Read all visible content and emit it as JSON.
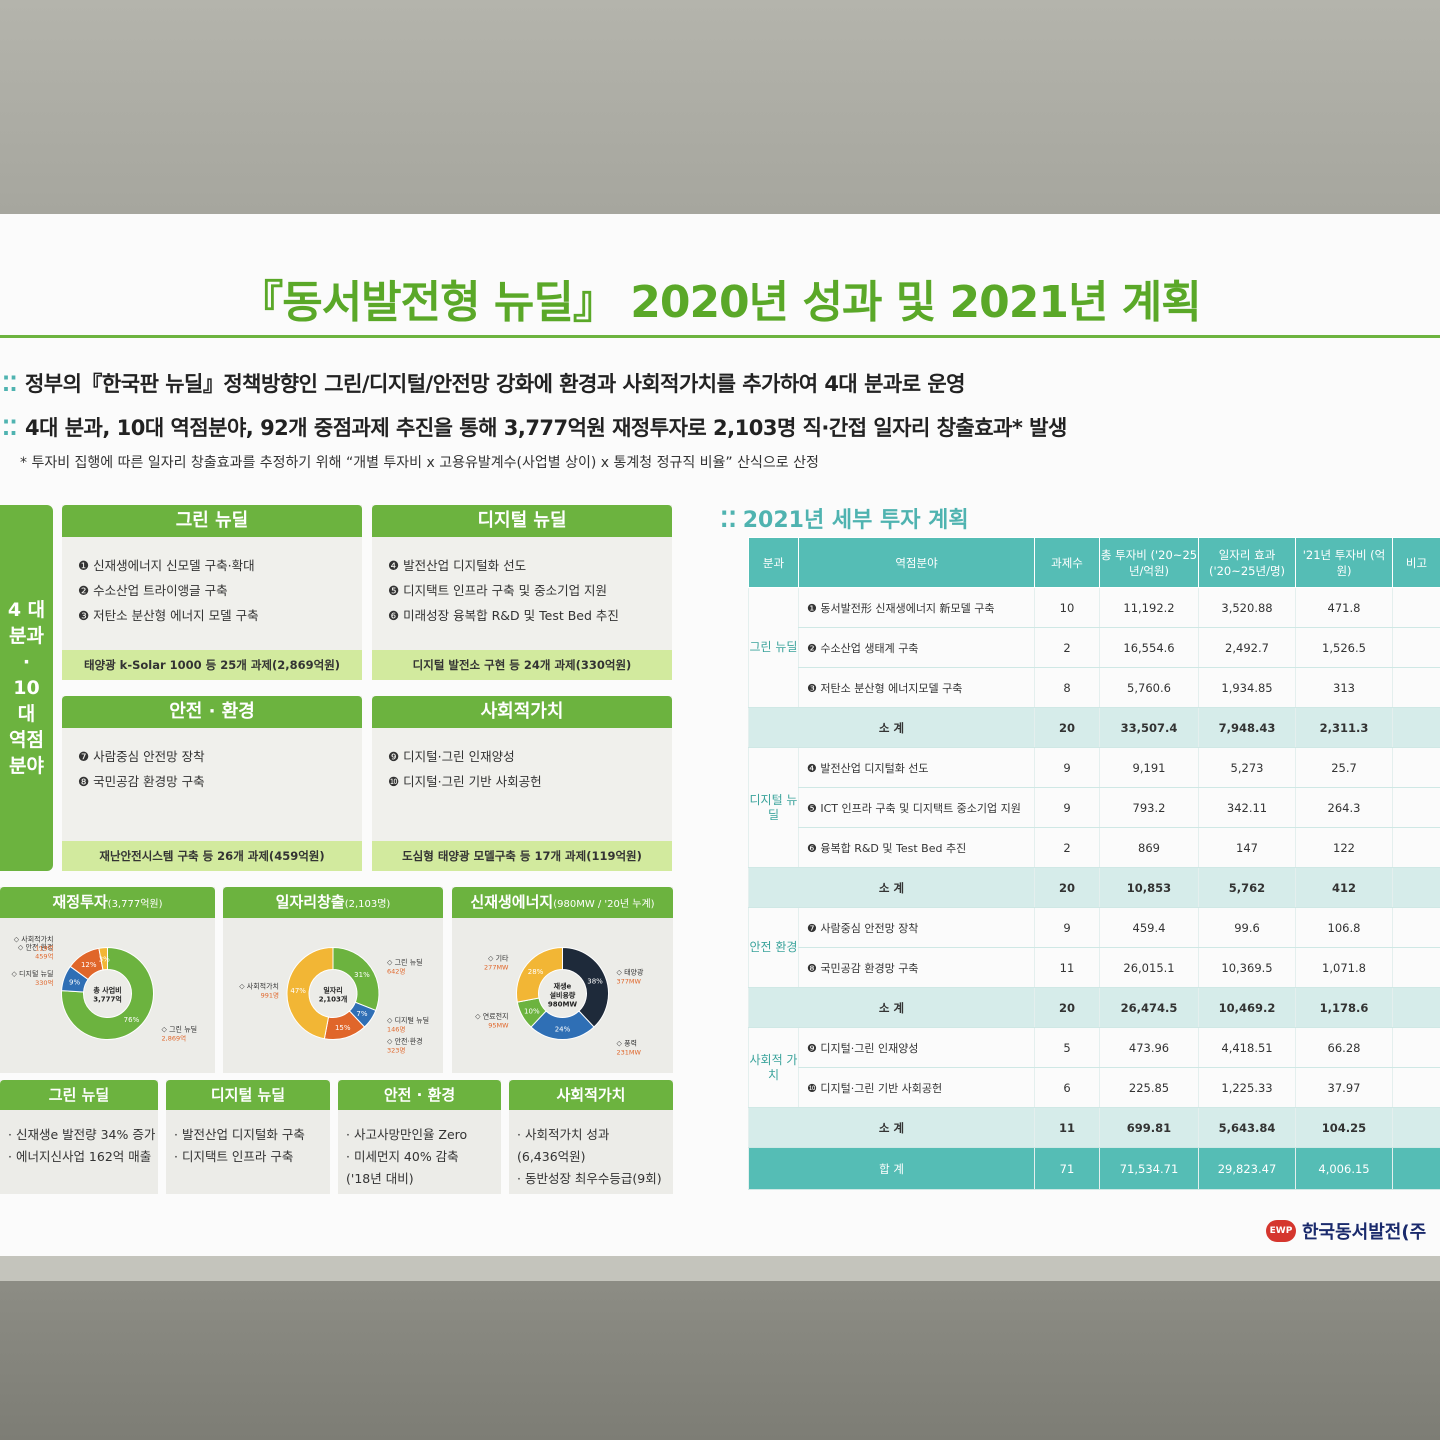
{
  "title": "『동서발전형 뉴딜』 2020년 성과 및 2021년 계획",
  "bullets": [
    "정부의『한국판 뉴딜』정책방향인 그린/디지털/안전망 강화에 환경과 사회적가치를 추가하여 4대 분과로 운영",
    "4대 분과, 10대 역점분야, 92개 중점과제 추진을 통해 3,777억원 재정투자로 2,103명 직·간접 일자리 창출효과* 발생"
  ],
  "footnote": "* 투자비 집행에 따른 일자리 창출효과를 추정하기 위해 “개별 투자비 x 고용유발계수(사업별 상이) x 통계청 정규직 비율” 산식으로 산정",
  "sidebar": "4 대 분과 · 10대 역점 분야",
  "quads": [
    {
      "head": "그린 뉴딜",
      "items": [
        "❶ 신재생에너지 신모델 구축·확대",
        "❷ 수소산업 트라이앵글 구축",
        "❸ 저탄소 분산형 에너지 모델 구축"
      ],
      "bar": "태양광 k-Solar 1000 등 25개 과제(2,869억원)"
    },
    {
      "head": "디지털 뉴딜",
      "items": [
        "❹ 발전산업 디지털화 선도",
        "❺ 디지택트 인프라 구축 및 중소기업 지원",
        "❻ 미래성장 융복합 R&D 및 Test Bed 추진"
      ],
      "bar": "디지털 발전소 구현 등 24개 과제(330억원)"
    },
    {
      "head": "안전 · 환경",
      "items": [
        "❼ 사람중심 안전망 장착",
        "❽ 국민공감 환경망 구축"
      ],
      "bar": "재난안전시스템 구축 등 26개 과제(459억원)"
    },
    {
      "head": "사회적가치",
      "items": [
        "❾ 디지털·그린 인재양성",
        "❿ 디지털·그린 기반 사회공헌"
      ],
      "bar": "도심형 태양광 모델구축 등 17개 과제(119억원)"
    }
  ],
  "stats": [
    {
      "head": "재정투자",
      "unit": "(3,777억원)"
    },
    {
      "head": "일자리창출",
      "unit": "(2,103명)"
    },
    {
      "head": "신재생에너지",
      "unit": "(980MW / '20년 누계)"
    }
  ],
  "chart_data": [
    {
      "type": "pie",
      "title": "재정투자(3,777억원)",
      "center": [
        "총 사업비",
        "3,777억"
      ],
      "slices": [
        {
          "label": "그린 뉴딜",
          "value_text": "2,869억",
          "pct": 76,
          "color": "#6cb33f"
        },
        {
          "label": "디지털 뉴딜",
          "value_text": "330억",
          "pct": 9,
          "color": "#2f6fb5"
        },
        {
          "label": "안전·환경",
          "value_text": "459억",
          "pct": 12,
          "color": "#e0662a"
        },
        {
          "label": "사회적가치",
          "value_text": "119억",
          "pct": 3,
          "color": "#f2b635"
        }
      ]
    },
    {
      "type": "pie",
      "title": "일자리창출(2,103명)",
      "center": [
        "일자리",
        "2,103개"
      ],
      "slices": [
        {
          "label": "그린 뉴딜",
          "value_text": "642명",
          "pct": 31,
          "color": "#6cb33f"
        },
        {
          "label": "디지털 뉴딜",
          "value_text": "146명",
          "pct": 7,
          "color": "#2f6fb5"
        },
        {
          "label": "안전·환경",
          "value_text": "323명",
          "pct": 15,
          "color": "#e0662a"
        },
        {
          "label": "사회적가치",
          "value_text": "991명",
          "pct": 47,
          "color": "#f2b635"
        }
      ]
    },
    {
      "type": "pie",
      "title": "신재생에너지(980MW / '20년 누계)",
      "center": [
        "재생e",
        "설비용량",
        "980MW"
      ],
      "slices": [
        {
          "label": "태양광",
          "value_text": "377MW",
          "pct": 38,
          "color": "#1e2a3a"
        },
        {
          "label": "풍력",
          "value_text": "231MW",
          "pct": 24,
          "color": "#2f6fb5"
        },
        {
          "label": "연료전지",
          "value_text": "95MW",
          "pct": 10,
          "color": "#6cb33f"
        },
        {
          "label": "기타",
          "value_text": "277MW",
          "pct": 28,
          "color": "#f2b635"
        }
      ]
    }
  ],
  "results": [
    {
      "head": "그린 뉴딜",
      "items": [
        "· 신재생e 발전량 34% 증가",
        "· 에너지신사업 162억 매출"
      ]
    },
    {
      "head": "디지털 뉴딜",
      "items": [
        "· 발전산업 디지털화 구축",
        "· 디지택트 인프라 구축"
      ]
    },
    {
      "head": "안전 · 환경",
      "items": [
        "· 사고사망만인율 Zero",
        "· 미세먼지 40% 감축\n ('18년 대비)"
      ]
    },
    {
      "head": "사회적가치",
      "items": [
        "· 사회적가치 성과\n (6,436억원)",
        "· 동반성장 최우수등급(9회)"
      ]
    }
  ],
  "table": {
    "title": "2021년 세부 투자 계획",
    "headers": [
      "분과",
      "역점분야",
      "과제수",
      "총 투자비 ('20~25년/억원)",
      "일자리 효과 ('20~25년/명)",
      "'21년 투자비 (억원)",
      "비고"
    ],
    "groups": [
      {
        "cat": "그린 뉴딜",
        "rows": [
          [
            "❶ 동서발전形 신재생에너지 新모델 구축",
            "10",
            "11,192.2",
            "3,520.88",
            "471.8"
          ],
          [
            "❷ 수소산업 생태계 구축",
            "2",
            "16,554.6",
            "2,492.7",
            "1,526.5"
          ],
          [
            "❸ 저탄소 분산형 에너지모델 구축",
            "8",
            "5,760.6",
            "1,934.85",
            "313"
          ]
        ],
        "sub": [
          "소 계",
          "20",
          "33,507.4",
          "7,948.43",
          "2,311.3"
        ]
      },
      {
        "cat": "디지털 뉴딜",
        "rows": [
          [
            "❹ 발전산업 디지털화 선도",
            "9",
            "9,191",
            "5,273",
            "25.7"
          ],
          [
            "❺ ICT 인프라 구축 및 디지택트 중소기업 지원",
            "9",
            "793.2",
            "342.11",
            "264.3"
          ],
          [
            "❻ 융복합 R&D 및 Test Bed 추진",
            "2",
            "869",
            "147",
            "122"
          ]
        ],
        "sub": [
          "소 계",
          "20",
          "10,853",
          "5,762",
          "412"
        ]
      },
      {
        "cat": "안전 환경",
        "rows": [
          [
            "❼ 사람중심 안전망 장착",
            "9",
            "459.4",
            "99.6",
            "106.8"
          ],
          [
            "❽ 국민공감 환경망 구축",
            "11",
            "26,015.1",
            "10,369.5",
            "1,071.8"
          ]
        ],
        "sub": [
          "소 계",
          "20",
          "26,474.5",
          "10,469.2",
          "1,178.6"
        ]
      },
      {
        "cat": "사회적 가치",
        "rows": [
          [
            "❾ 디지털·그린 인재양성",
            "5",
            "473.96",
            "4,418.51",
            "66.28"
          ],
          [
            "❿ 디지털·그린 기반 사회공헌",
            "6",
            "225.85",
            "1,225.33",
            "37.97"
          ]
        ],
        "sub": [
          "소 계",
          "11",
          "699.81",
          "5,643.84",
          "104.25"
        ]
      }
    ],
    "total": [
      "합 계",
      "71",
      "71,534.71",
      "29,823.47",
      "4,006.15"
    ]
  },
  "logo": {
    "mark": "EWP",
    "text": "한국동서발전(주"
  }
}
